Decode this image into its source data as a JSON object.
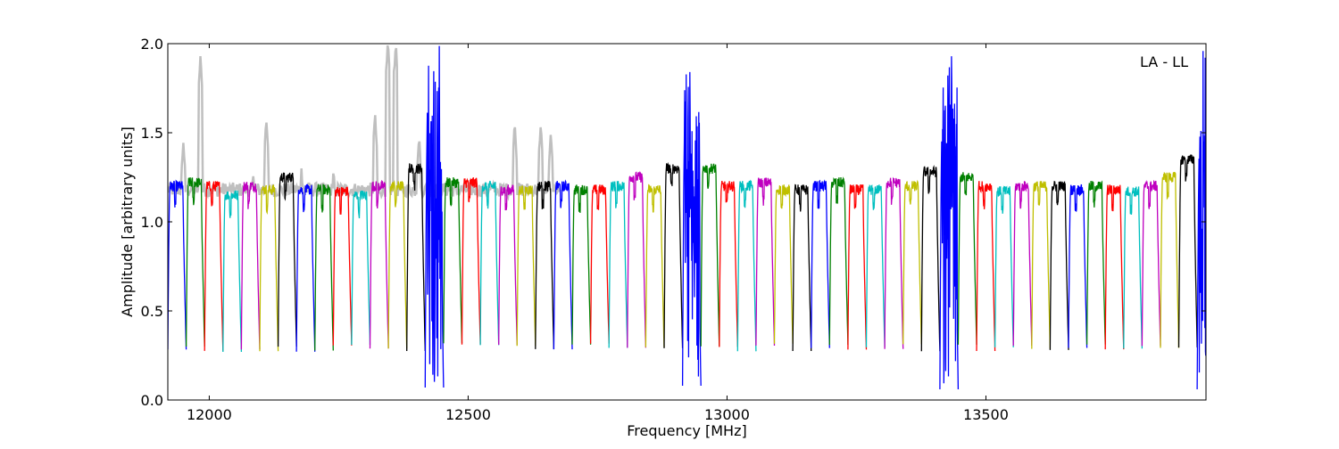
{
  "chart_data": {
    "type": "line",
    "title": "",
    "annotation": "LA - LL",
    "xlabel": "Frequency [MHz]",
    "ylabel": "Amplitude [arbitrary units]",
    "xlim": [
      11920,
      13925
    ],
    "ylim": [
      0.0,
      2.0
    ],
    "xticks": [
      12000,
      12500,
      13000,
      13500
    ],
    "xtick_labels": [
      "12000",
      "12500",
      "13000",
      "13500"
    ],
    "yticks": [
      0.0,
      0.5,
      1.0,
      1.5,
      2.0
    ],
    "ytick_labels": [
      "0.0",
      "0.5",
      "1.0",
      "1.5",
      "2.0"
    ],
    "grid": false,
    "legend": "none",
    "background_series": {
      "color": "#bfbfbf",
      "description_of_extent": [
        11920,
        12680
      ],
      "peaks": [
        {
          "x": 11950,
          "y": 1.45
        },
        {
          "x": 11983,
          "y": 1.92
        },
        {
          "x": 12085,
          "y": 1.28
        },
        {
          "x": 12110,
          "y": 1.58
        },
        {
          "x": 12178,
          "y": 1.3
        },
        {
          "x": 12240,
          "y": 1.28
        },
        {
          "x": 12320,
          "y": 1.6
        },
        {
          "x": 12345,
          "y": 2.0
        },
        {
          "x": 12360,
          "y": 2.0
        },
        {
          "x": 12405,
          "y": 1.48
        },
        {
          "x": 12590,
          "y": 1.55
        },
        {
          "x": 12640,
          "y": 1.55
        },
        {
          "x": 12660,
          "y": 1.5
        }
      ]
    },
    "channel_colors": [
      "#0000ff",
      "#008000",
      "#ff0000",
      "#00bfbf",
      "#bf00bf",
      "#bfbf00",
      "#000000"
    ],
    "channel_width": 35.5,
    "channel_start": 11920,
    "channels": [
      {
        "start": 11920,
        "level": 1.2
      },
      {
        "start": 11955.5,
        "level": 1.22,
        "min": 0.3
      },
      {
        "start": 11991,
        "level": 1.2
      },
      {
        "start": 12026.5,
        "level": 1.15
      },
      {
        "start": 12062,
        "level": 1.2
      },
      {
        "start": 12097.5,
        "level": 1.18
      },
      {
        "start": 12133,
        "level": 1.25
      },
      {
        "start": 12168.5,
        "level": 1.18
      },
      {
        "start": 12204,
        "level": 1.18
      },
      {
        "start": 12239.5,
        "level": 1.17
      },
      {
        "start": 12275,
        "level": 1.15
      },
      {
        "start": 12310.5,
        "level": 1.2
      },
      {
        "start": 12346,
        "level": 1.2
      },
      {
        "start": 12381.5,
        "level": 1.3
      },
      {
        "start": 12417,
        "level": 1.5,
        "min": 0.07,
        "wild": true
      },
      {
        "start": 12452.5,
        "level": 1.22
      },
      {
        "start": 12488,
        "level": 1.22
      },
      {
        "start": 12523.5,
        "level": 1.2
      },
      {
        "start": 12559,
        "level": 1.18
      },
      {
        "start": 12594.5,
        "level": 1.18
      },
      {
        "start": 12630,
        "level": 1.2
      },
      {
        "start": 12665.5,
        "level": 1.2
      },
      {
        "start": 12701,
        "level": 1.18
      },
      {
        "start": 12736.5,
        "level": 1.18
      },
      {
        "start": 12772,
        "level": 1.2
      },
      {
        "start": 12807.5,
        "level": 1.25
      },
      {
        "start": 12843,
        "level": 1.18
      },
      {
        "start": 12878.5,
        "level": 1.3
      },
      {
        "start": 12914,
        "level": 1.5,
        "min": 0.08,
        "wild": true
      },
      {
        "start": 12949.5,
        "level": 1.3
      },
      {
        "start": 12985,
        "level": 1.2
      },
      {
        "start": 13020.5,
        "level": 1.2
      },
      {
        "start": 13056,
        "level": 1.22
      },
      {
        "start": 13091.5,
        "level": 1.18
      },
      {
        "start": 13127,
        "level": 1.18
      },
      {
        "start": 13162.5,
        "level": 1.2
      },
      {
        "start": 13198,
        "level": 1.22
      },
      {
        "start": 13233.5,
        "level": 1.18
      },
      {
        "start": 13269,
        "level": 1.18
      },
      {
        "start": 13304.5,
        "level": 1.22
      },
      {
        "start": 13340,
        "level": 1.2
      },
      {
        "start": 13375.5,
        "level": 1.28
      },
      {
        "start": 13411,
        "level": 1.5,
        "min": 0.06,
        "wild": true
      },
      {
        "start": 13446.5,
        "level": 1.25
      },
      {
        "start": 13482,
        "level": 1.2
      },
      {
        "start": 13517.5,
        "level": 1.17
      },
      {
        "start": 13553,
        "level": 1.2
      },
      {
        "start": 13588.5,
        "level": 1.2
      },
      {
        "start": 13624,
        "level": 1.2
      },
      {
        "start": 13659.5,
        "level": 1.18
      },
      {
        "start": 13695,
        "level": 1.2
      },
      {
        "start": 13730.5,
        "level": 1.18
      },
      {
        "start": 13766,
        "level": 1.17
      },
      {
        "start": 13801.5,
        "level": 1.2
      },
      {
        "start": 13837,
        "level": 1.25
      },
      {
        "start": 13872.5,
        "level": 1.35
      },
      {
        "start": 13908,
        "level": 1.4,
        "min": 0.06,
        "wild": true
      }
    ]
  }
}
